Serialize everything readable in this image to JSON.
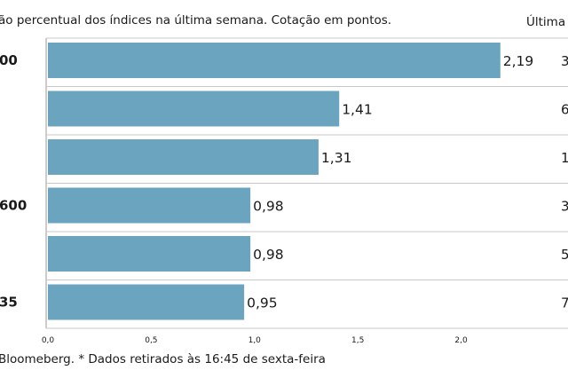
{
  "header": {
    "subtitle": "ão percentual dos índices na última semana. Cotação em pontos.",
    "last_column": "Última c"
  },
  "footnote": "Bloomeberg. * Dados retirados às 16:45 de sexta-feira",
  "chart_data": {
    "type": "bar",
    "orientation": "horizontal",
    "categories": [
      "00",
      "",
      "",
      "600",
      "",
      "35"
    ],
    "values": [
      2.19,
      1.41,
      1.31,
      0.98,
      0.98,
      0.95
    ],
    "value_labels": [
      "2,19",
      "1,41",
      "1,31",
      "0,98",
      "0,98",
      "0,95"
    ],
    "last_values": [
      "3",
      "6",
      "1",
      "3",
      "5",
      "7"
    ],
    "xlim": [
      0,
      2.35
    ],
    "xticks": [
      0,
      0.5,
      1.0,
      1.5,
      2.0
    ],
    "xtick_labels": [
      "0,0",
      "0,5",
      "1,0",
      "1,5",
      "2,0"
    ],
    "bar_color": "#6aa4be",
    "grid": false
  }
}
